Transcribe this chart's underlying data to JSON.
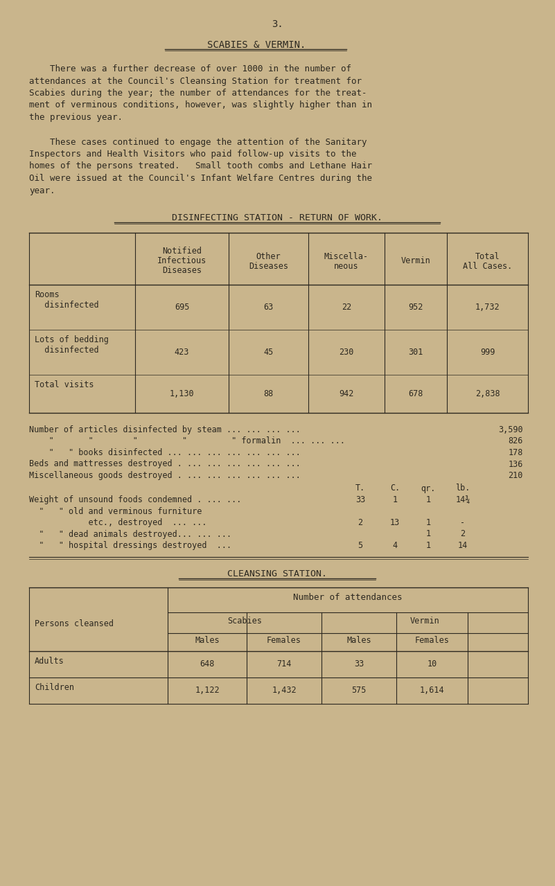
{
  "bg_color": "#c9b58c",
  "text_color": "#2c2820",
  "page_number": "3.",
  "title": "SCABIES & VERMIN.",
  "para1_lines": [
    "    There was a further decrease of over 1000 in the number of",
    "attendances at the Council's Cleansing Station for treatment for",
    "Scabies during the year; the number of attendances for the treat-",
    "ment of verminous conditions, however, was slightly higher than in",
    "the previous year."
  ],
  "para2_lines": [
    "    These cases continued to engage the attention of the Sanitary",
    "Inspectors and Health Visitors who paid follow-up visits to the",
    "homes of the persons treated.   Small tooth combs and Lethane Hair",
    "Oil were issued at the Council's Infant Welfare Centres during the",
    "year."
  ],
  "disinfecting_title": "DISINFECTING STATION - RETURN OF WORK.",
  "table1_col_labels": [
    "Notified\nInfectious\nDiseases",
    "Other\nDiseases",
    "Miscella-\nneous",
    "Vermin",
    "Total\nAll Cases."
  ],
  "table1_rows": [
    [
      "Rooms\n  disinfected",
      "695",
      "63",
      "22",
      "952",
      "1,732"
    ],
    [
      "Lots of bedding\n  disinfected",
      "423",
      "45",
      "230",
      "301",
      "999"
    ],
    [
      "Total visits",
      "1,130",
      "88",
      "942",
      "678",
      "2,838"
    ]
  ],
  "misc_lines": [
    [
      "Number of articles disinfected by steam ... ... ... ...",
      "3,590"
    ],
    [
      "    \"       \"        \"         \"         \" formalin  ... ... ...",
      "826"
    ],
    [
      "    \"   \" books disinfected ... ... ... ... ... ... ...",
      "178"
    ],
    [
      "Beds and mattresses destroyed . ... ... ... ... ... ...",
      "136"
    ],
    [
      "Miscellaneous goods destroyed . ... ... ... ... ... ...",
      "210"
    ]
  ],
  "weight_col_headers": [
    "T.",
    "C.",
    "qr.",
    "lb."
  ],
  "weight_lines": [
    [
      "Weight of unsound foods condemned . ... ...",
      "33",
      "1",
      "1",
      "14¾"
    ],
    [
      "  \"   \" old and verminous furniture",
      "",
      "",
      "",
      ""
    ],
    [
      "            etc., destroyed  ... ...",
      "2",
      "13",
      "1",
      "-"
    ],
    [
      "  \"   \" dead animals destroyed... ... ...",
      "",
      "",
      "1",
      "2"
    ],
    [
      "  \"   \" hospital dressings destroyed  ...",
      "5",
      "4",
      "1",
      "14"
    ]
  ],
  "cleansing_title": "CLEANSING STATION.",
  "table2_rows": [
    [
      "Adults",
      "648",
      "714",
      "33",
      "10"
    ],
    [
      "Children",
      "1,122",
      "1,432",
      "575",
      "1,614"
    ]
  ]
}
